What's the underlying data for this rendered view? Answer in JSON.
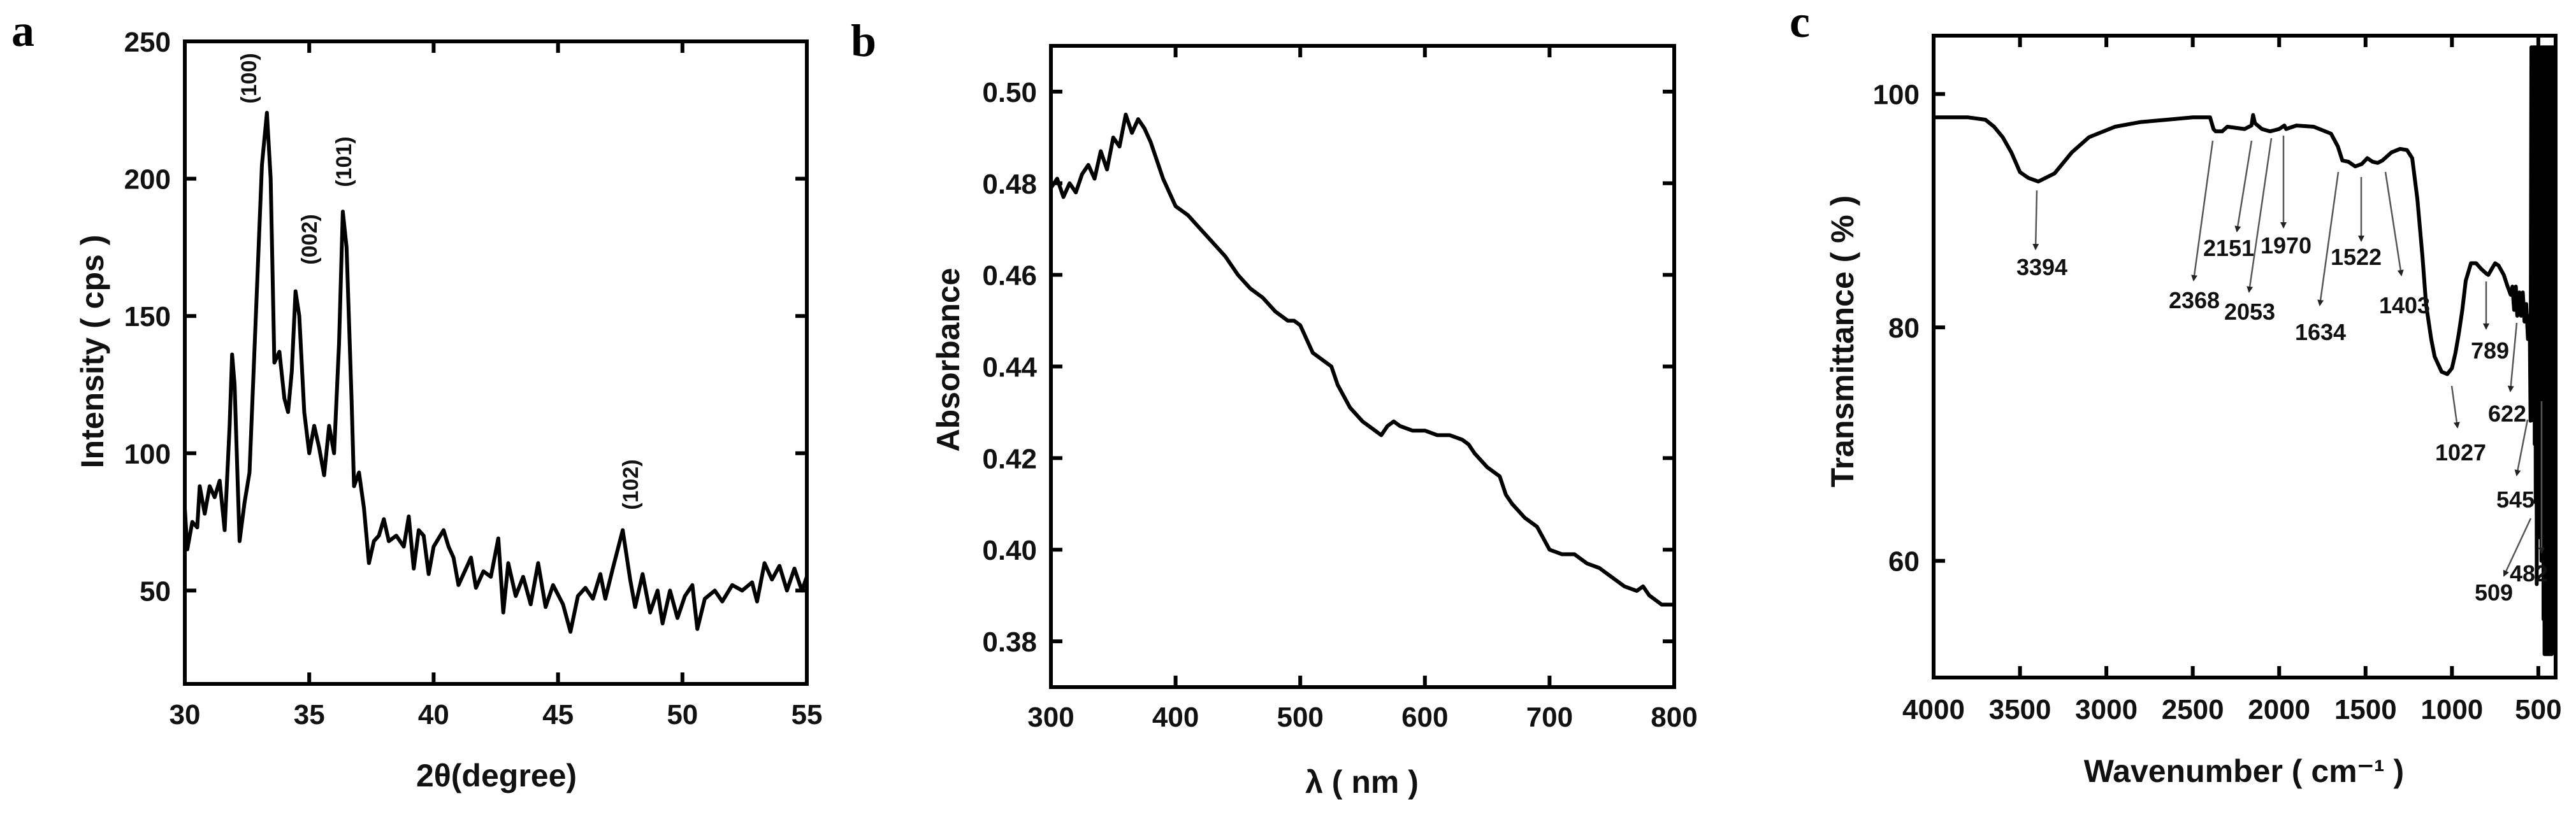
{
  "chart_data": [
    {
      "panel_label": "a",
      "type": "line",
      "title": "",
      "xlabel": "2θ(degree)",
      "ylabel": "Intensity ( cps )",
      "xlim": [
        30,
        55
      ],
      "ylim": [
        16,
        250
      ],
      "xticks": [
        30,
        35,
        40,
        45,
        50,
        55
      ],
      "yticks": [
        50,
        100,
        150,
        200,
        250
      ],
      "grid": false,
      "x": [
        30,
        30.1,
        30.3,
        30.5,
        30.6,
        30.8,
        31,
        31.2,
        31.4,
        31.6,
        31.8,
        31.9,
        32.0,
        32.2,
        32.4,
        32.6,
        32.9,
        33.1,
        33.3,
        33.45,
        33.6,
        33.8,
        34.0,
        34.15,
        34.3,
        34.45,
        34.6,
        34.8,
        35.0,
        35.2,
        35.4,
        35.6,
        35.8,
        36.0,
        36.2,
        36.35,
        36.5,
        36.7,
        36.8,
        37.0,
        37.2,
        37.4,
        37.6,
        37.8,
        38.0,
        38.2,
        38.5,
        38.8,
        39.0,
        39.2,
        39.4,
        39.6,
        39.8,
        40.0,
        40.4,
        40.6,
        40.8,
        41.0,
        41.3,
        41.5,
        41.7,
        42.0,
        42.3,
        42.6,
        42.8,
        43.0,
        43.3,
        43.6,
        43.9,
        44.2,
        44.5,
        44.8,
        45.2,
        45.5,
        45.8,
        46.1,
        46.4,
        46.7,
        46.9,
        47.2,
        47.6,
        47.9,
        48.1,
        48.4,
        48.7,
        49.0,
        49.2,
        49.5,
        49.8,
        50.1,
        50.4,
        50.6,
        50.9,
        51.3,
        51.6,
        52.0,
        52.4,
        52.8,
        53.0,
        53.3,
        53.6,
        53.9,
        54.2,
        54.5,
        54.8,
        55
      ],
      "y": [
        80,
        65,
        75,
        73,
        88,
        78,
        88,
        84,
        90,
        72,
        110,
        136,
        125,
        68,
        82,
        93,
        160,
        205,
        224,
        200,
        133,
        137,
        120,
        115,
        130,
        159,
        150,
        115,
        100,
        110,
        102,
        92,
        110,
        100,
        140,
        188,
        175,
        120,
        88,
        93,
        80,
        60,
        68,
        70,
        76,
        68,
        70,
        66,
        77,
        58,
        72,
        70,
        56,
        66,
        72,
        66,
        62,
        52,
        58,
        62,
        51,
        57,
        55,
        69,
        42,
        60,
        48,
        55,
        45,
        60,
        44,
        52,
        45,
        35,
        48,
        51,
        47,
        56,
        47,
        58,
        72,
        54,
        44,
        56,
        42,
        50,
        38,
        50,
        40,
        48,
        52,
        36,
        47,
        50,
        46,
        52,
        50,
        53,
        46,
        60,
        54,
        59,
        50,
        58,
        50,
        55
      ],
      "annotations": [
        {
          "text": "(100)",
          "x": 33.3
        },
        {
          "text": "(002)",
          "x": 34.45
        },
        {
          "text": "(101)",
          "x": 36.35
        },
        {
          "text": "(102)",
          "x": 47.6
        }
      ]
    },
    {
      "panel_label": "b",
      "type": "line",
      "title": "",
      "xlabel": "λ ( nm )",
      "ylabel": "Absorbance",
      "xlim": [
        300,
        800
      ],
      "ylim": [
        0.37,
        0.51
      ],
      "xticks": [
        300,
        400,
        500,
        600,
        700,
        800
      ],
      "yticks": [
        0.38,
        0.4,
        0.42,
        0.44,
        0.46,
        0.48,
        0.5
      ],
      "ytick_labels": [
        "0.38",
        "0.40",
        "0.42",
        "0.44",
        "0.46",
        "0.48",
        "0.50"
      ],
      "grid": false,
      "x": [
        300,
        305,
        310,
        315,
        320,
        325,
        330,
        335,
        340,
        345,
        350,
        355,
        360,
        365,
        370,
        375,
        380,
        390,
        400,
        410,
        420,
        430,
        440,
        450,
        460,
        470,
        480,
        490,
        495,
        500,
        510,
        520,
        525,
        530,
        540,
        550,
        560,
        565,
        570,
        575,
        580,
        590,
        600,
        610,
        620,
        630,
        635,
        640,
        650,
        660,
        665,
        670,
        680,
        690,
        700,
        710,
        720,
        730,
        740,
        750,
        760,
        770,
        775,
        780,
        790,
        800
      ],
      "y": [
        0.479,
        0.481,
        0.477,
        0.48,
        0.478,
        0.482,
        0.484,
        0.481,
        0.487,
        0.483,
        0.49,
        0.488,
        0.495,
        0.491,
        0.494,
        0.492,
        0.489,
        0.481,
        0.475,
        0.473,
        0.47,
        0.467,
        0.464,
        0.46,
        0.457,
        0.455,
        0.452,
        0.45,
        0.45,
        0.449,
        0.443,
        0.441,
        0.44,
        0.436,
        0.431,
        0.428,
        0.426,
        0.425,
        0.427,
        0.428,
        0.427,
        0.426,
        0.426,
        0.425,
        0.425,
        0.424,
        0.423,
        0.421,
        0.418,
        0.416,
        0.412,
        0.41,
        0.407,
        0.405,
        0.4,
        0.399,
        0.399,
        0.397,
        0.396,
        0.394,
        0.392,
        0.391,
        0.392,
        0.39,
        0.388,
        0.388
      ]
    },
    {
      "panel_label": "c",
      "type": "line",
      "title": "",
      "xlabel": "Wavenumber ( cm⁻¹ )",
      "ylabel": "Transmittance ( % )",
      "xlim": [
        4000,
        400
      ],
      "ylim": [
        50,
        105
      ],
      "xticks": [
        4000,
        3500,
        3000,
        2500,
        2000,
        1500,
        1000,
        500
      ],
      "yticks": [
        60,
        80,
        100
      ],
      "grid": false,
      "x": [
        4000,
        3800,
        3700,
        3650,
        3600,
        3550,
        3500,
        3450,
        3394,
        3300,
        3200,
        3100,
        2950,
        2800,
        2650,
        2500,
        2400,
        2380,
        2368,
        2330,
        2300,
        2200,
        2160,
        2151,
        2140,
        2100,
        2053,
        2000,
        1970,
        1960,
        1900,
        1800,
        1700,
        1660,
        1634,
        1600,
        1560,
        1522,
        1490,
        1460,
        1430,
        1403,
        1350,
        1300,
        1260,
        1230,
        1200,
        1170,
        1150,
        1120,
        1100,
        1060,
        1027,
        1000,
        980,
        960,
        940,
        920,
        890,
        860,
        830,
        800,
        789,
        770,
        750,
        730,
        700,
        680,
        660,
        650,
        640,
        630,
        622,
        610,
        600,
        590,
        580,
        570,
        560,
        550,
        545,
        540,
        533,
        530,
        527,
        524,
        521,
        518,
        515,
        512,
        509,
        506,
        503,
        500,
        497,
        494,
        491,
        488,
        485,
        482,
        479,
        476,
        473,
        470,
        467,
        464,
        461,
        458,
        455,
        452,
        449,
        446,
        443,
        440,
        437,
        434,
        431,
        428,
        425,
        422,
        419,
        416,
        413,
        410
      ],
      "y": [
        98,
        98,
        97.8,
        97.2,
        96.3,
        95,
        93.3,
        92.8,
        92.5,
        93.2,
        95,
        96.3,
        97.2,
        97.6,
        97.8,
        98,
        98,
        97,
        96.8,
        96.8,
        97.2,
        97,
        97.3,
        98.2,
        97.5,
        97,
        96.8,
        97,
        97.3,
        97,
        97.3,
        97.2,
        96.6,
        95.5,
        94.3,
        94.2,
        93.8,
        94,
        94.5,
        94.2,
        94.1,
        94.3,
        95,
        95.3,
        95.2,
        94.5,
        91,
        86,
        82,
        79,
        77.5,
        76.2,
        76,
        76.5,
        77.8,
        79.5,
        81.5,
        84,
        85.5,
        85.5,
        85,
        84.6,
        84.5,
        85,
        85.5,
        85.3,
        84.5,
        83.6,
        82.8,
        83.5,
        81.5,
        83.5,
        81,
        83,
        81,
        83,
        80.5,
        82,
        79,
        81,
        72,
        104,
        80,
        104,
        72,
        104,
        70,
        104,
        65,
        104,
        58,
        104,
        70,
        104,
        78,
        104,
        62,
        104,
        75,
        60,
        104,
        80,
        104,
        55,
        104,
        52,
        104,
        52,
        104,
        52,
        104,
        52,
        104,
        52,
        104,
        52,
        104,
        52,
        104,
        52,
        104,
        60,
        104,
        80
      ],
      "annotations": [
        {
          "text": "3394"
        },
        {
          "text": "2368"
        },
        {
          "text": "2151"
        },
        {
          "text": "2053"
        },
        {
          "text": "1970"
        },
        {
          "text": "1634"
        },
        {
          "text": "1522"
        },
        {
          "text": "1403"
        },
        {
          "text": "1027"
        },
        {
          "text": "789"
        },
        {
          "text": "622"
        },
        {
          "text": "545"
        },
        {
          "text": "509"
        },
        {
          "text": "482"
        }
      ]
    }
  ],
  "colors": {
    "line": "#000000",
    "arrow": "#555555",
    "frame": "#000000"
  }
}
